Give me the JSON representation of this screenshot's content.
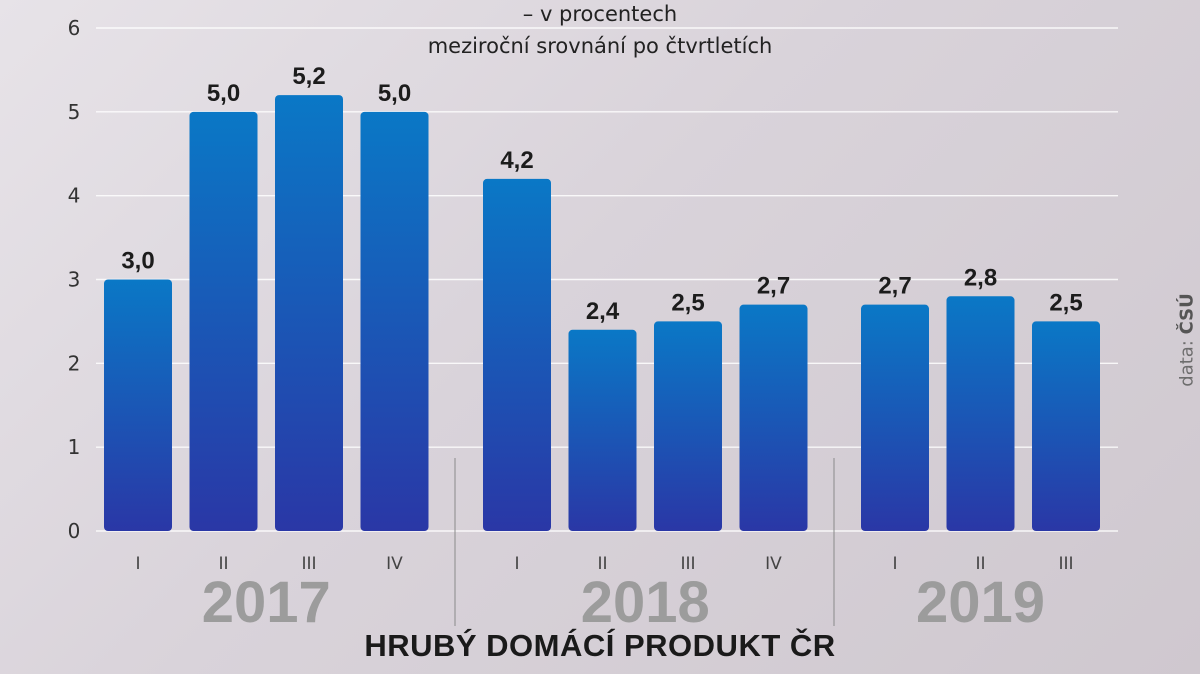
{
  "chart_data": {
    "type": "bar",
    "title": "HRUBÝ DOMÁCÍ PRODUKT ČR",
    "subtitle": [
      "– v procentech",
      "meziroční srovnání po čtvrtletích"
    ],
    "source_label": "data:",
    "source_name": "ČSÚ",
    "ylim": [
      0,
      6
    ],
    "yticks": [
      "0",
      "1",
      "2",
      "3",
      "4",
      "5",
      "6"
    ],
    "groups": [
      {
        "year": "2017",
        "quarters": [
          "I",
          "II",
          "III",
          "IV"
        ],
        "values": [
          3.0,
          5.0,
          5.2,
          5.0
        ],
        "labels": [
          "3,0",
          "5,0",
          "5,2",
          "5,0"
        ]
      },
      {
        "year": "2018",
        "quarters": [
          "I",
          "II",
          "III",
          "IV"
        ],
        "values": [
          4.2,
          2.4,
          2.5,
          2.7
        ],
        "labels": [
          "4,2",
          "2,4",
          "2,5",
          "2,7"
        ]
      },
      {
        "year": "2019",
        "quarters": [
          "I",
          "II",
          "III"
        ],
        "values": [
          2.7,
          2.8,
          2.5
        ],
        "labels": [
          "2,7",
          "2,8",
          "2,5"
        ]
      }
    ],
    "grid": true,
    "colors": {
      "bar_top": "#0a78c6",
      "bar_bottom": "#2a37a6",
      "year": "#9c9c9c",
      "grid": "#ffffff"
    }
  }
}
